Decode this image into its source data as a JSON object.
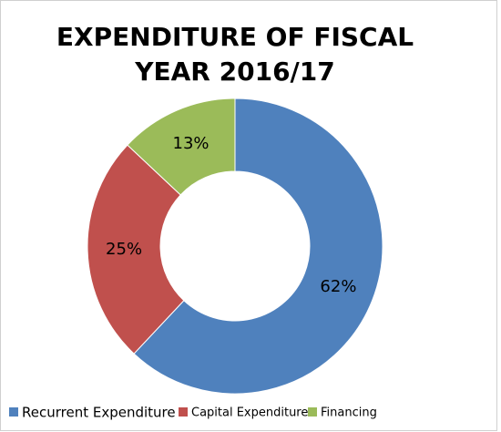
{
  "chart_data": {
    "type": "donut",
    "title": "EXPENDITURE OF FISCAL YEAR 2016/17",
    "categories": [
      "Recurrent Expenditure",
      "Capital Expenditure",
      "Financing"
    ],
    "values": [
      62,
      25,
      13
    ],
    "value_labels": [
      "62%",
      "25%",
      "13%"
    ],
    "colors": [
      "#4f81bd",
      "#c0504d",
      "#9bbb59"
    ],
    "legend": "bottom"
  }
}
